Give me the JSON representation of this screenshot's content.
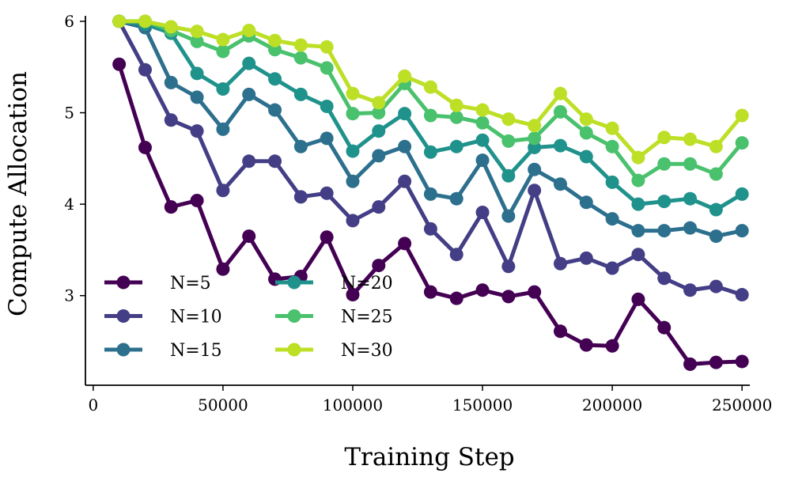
{
  "chart_data": {
    "type": "line",
    "title": "",
    "xlabel": "Training Step",
    "ylabel": "Compute Allocation",
    "xlim": [
      -3000,
      253000
    ],
    "ylim": [
      2.02,
      6.06
    ],
    "xticks": [
      0,
      50000,
      100000,
      150000,
      200000,
      250000
    ],
    "xtick_labels": [
      "0",
      "50000",
      "100000",
      "150000",
      "200000",
      "250000"
    ],
    "yticks": [
      3,
      4,
      5,
      6
    ],
    "ytick_labels": [
      "3",
      "4",
      "5",
      "6"
    ],
    "grid": false,
    "legend_placement": "lower-left",
    "x": [
      10000,
      20000,
      30000,
      40000,
      50000,
      60000,
      70000,
      80000,
      90000,
      100000,
      110000,
      120000,
      130000,
      140000,
      150000,
      160000,
      170000,
      180000,
      190000,
      200000,
      210000,
      220000,
      230000,
      240000,
      250000
    ],
    "series": [
      {
        "name": "N=5",
        "color": "#440154",
        "values": [
          5.53,
          4.62,
          3.97,
          4.04,
          3.29,
          3.65,
          3.18,
          3.21,
          3.64,
          3.01,
          3.33,
          3.57,
          3.04,
          2.97,
          3.06,
          2.99,
          3.04,
          2.61,
          2.46,
          2.45,
          2.96,
          2.65,
          2.25,
          2.27,
          2.28
        ]
      },
      {
        "name": "N=10",
        "color": "#433e85",
        "values": [
          6.0,
          5.47,
          4.92,
          4.8,
          4.15,
          4.47,
          4.47,
          4.08,
          4.12,
          3.82,
          3.97,
          4.25,
          3.73,
          3.45,
          3.91,
          3.32,
          4.15,
          3.35,
          3.41,
          3.3,
          3.45,
          3.19,
          3.06,
          3.1,
          3.01
        ]
      },
      {
        "name": "N=15",
        "color": "#2d708e",
        "values": [
          6.0,
          5.93,
          5.33,
          5.17,
          4.82,
          5.2,
          5.03,
          4.63,
          4.72,
          4.25,
          4.53,
          4.63,
          4.11,
          4.06,
          4.48,
          3.87,
          4.38,
          4.22,
          4.02,
          3.84,
          3.71,
          3.71,
          3.74,
          3.65,
          3.71
        ]
      },
      {
        "name": "N=20",
        "color": "#20928c",
        "values": [
          6.0,
          5.97,
          5.87,
          5.43,
          5.26,
          5.54,
          5.37,
          5.2,
          5.07,
          4.58,
          4.8,
          4.99,
          4.57,
          4.63,
          4.7,
          4.31,
          4.62,
          4.64,
          4.52,
          4.24,
          4.0,
          4.03,
          4.06,
          3.94,
          4.11
        ]
      },
      {
        "name": "N=25",
        "color": "#4ac16d",
        "values": [
          6.0,
          6.0,
          5.9,
          5.78,
          5.67,
          5.84,
          5.69,
          5.6,
          5.49,
          4.99,
          5.0,
          5.32,
          4.97,
          4.95,
          4.89,
          4.69,
          4.72,
          5.01,
          4.78,
          4.63,
          4.26,
          4.44,
          4.44,
          4.33,
          4.67
        ]
      },
      {
        "name": "N=30",
        "color": "#bddf26",
        "values": [
          6.0,
          6.0,
          5.94,
          5.89,
          5.8,
          5.9,
          5.79,
          5.74,
          5.72,
          5.21,
          5.11,
          5.4,
          5.28,
          5.08,
          5.03,
          4.93,
          4.86,
          5.21,
          4.93,
          4.83,
          4.51,
          4.73,
          4.71,
          4.63,
          4.97
        ]
      }
    ]
  }
}
